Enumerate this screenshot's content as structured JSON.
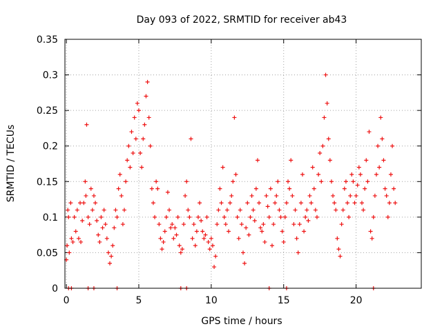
{
  "chart_data": {
    "type": "scatter",
    "title": "Day 093 of 2022, SRMTID for receiver ab43",
    "xlabel": "GPS time / hours",
    "ylabel": "SRMTID / TECUs",
    "xlim": [
      -0.1,
      24.5
    ],
    "ylim": [
      0,
      0.35
    ],
    "xticks": [
      0,
      5,
      10,
      15,
      20
    ],
    "xtick_labels": [
      "0",
      "5",
      "10",
      "15",
      "20"
    ],
    "yticks": [
      0,
      0.05,
      0.1,
      0.15,
      0.2,
      0.25,
      0.3,
      0.35
    ],
    "ytick_labels": [
      "0",
      "0.05",
      "0.1",
      "0.15",
      "0.2",
      "0.25",
      "0.3",
      "0.35"
    ],
    "grid": true,
    "marker": "+",
    "color": "#ee1111",
    "series": [
      {
        "name": "SRMTID",
        "points": [
          [
            0.0,
            0.04
          ],
          [
            0.05,
            0.06
          ],
          [
            0.1,
            0.11
          ],
          [
            0.15,
            0.1
          ],
          [
            0.2,
            0.05
          ],
          [
            0.3,
            0.12
          ],
          [
            0.35,
            0.07
          ],
          [
            0.45,
            0.065
          ],
          [
            0.55,
            0.1
          ],
          [
            0.65,
            0.08
          ],
          [
            0.75,
            0.11
          ],
          [
            0.85,
            0.07
          ],
          [
            0.95,
            0.12
          ],
          [
            1.0,
            0.065
          ],
          [
            1.1,
            0.095
          ],
          [
            1.2,
            0.12
          ],
          [
            1.3,
            0.15
          ],
          [
            1.35,
            0.13
          ],
          [
            1.4,
            0.23
          ],
          [
            1.5,
            0.1
          ],
          [
            1.6,
            0.09
          ],
          [
            1.7,
            0.14
          ],
          [
            1.8,
            0.11
          ],
          [
            1.9,
            0.13
          ],
          [
            2.0,
            0.12
          ],
          [
            2.1,
            0.095
          ],
          [
            2.2,
            0.075
          ],
          [
            2.3,
            0.065
          ],
          [
            2.4,
            0.1
          ],
          [
            2.5,
            0.085
          ],
          [
            2.6,
            0.11
          ],
          [
            2.7,
            0.09
          ],
          [
            2.8,
            0.07
          ],
          [
            2.9,
            0.05
          ],
          [
            3.0,
            0.035
          ],
          [
            3.1,
            0.045
          ],
          [
            3.2,
            0.06
          ],
          [
            3.3,
            0.085
          ],
          [
            3.4,
            0.11
          ],
          [
            3.5,
            0.1
          ],
          [
            3.6,
            0.14
          ],
          [
            3.7,
            0.16
          ],
          [
            3.8,
            0.13
          ],
          [
            3.9,
            0.09
          ],
          [
            4.0,
            0.11
          ],
          [
            4.1,
            0.15
          ],
          [
            4.2,
            0.18
          ],
          [
            4.3,
            0.2
          ],
          [
            4.4,
            0.17
          ],
          [
            4.5,
            0.22
          ],
          [
            4.6,
            0.19
          ],
          [
            4.7,
            0.24
          ],
          [
            4.8,
            0.21
          ],
          [
            4.9,
            0.26
          ],
          [
            5.0,
            0.25
          ],
          [
            5.1,
            0.19
          ],
          [
            5.2,
            0.17
          ],
          [
            5.3,
            0.21
          ],
          [
            5.4,
            0.23
          ],
          [
            5.5,
            0.27
          ],
          [
            5.6,
            0.29
          ],
          [
            5.7,
            0.24
          ],
          [
            5.8,
            0.2
          ],
          [
            5.9,
            0.14
          ],
          [
            6.0,
            0.12
          ],
          [
            6.1,
            0.1
          ],
          [
            6.2,
            0.15
          ],
          [
            6.3,
            0.14
          ],
          [
            6.4,
            0.09
          ],
          [
            6.5,
            0.07
          ],
          [
            6.6,
            0.055
          ],
          [
            6.7,
            0.065
          ],
          [
            6.8,
            0.08
          ],
          [
            6.9,
            0.1
          ],
          [
            7.0,
            0.135
          ],
          [
            7.1,
            0.11
          ],
          [
            7.2,
            0.085
          ],
          [
            7.3,
            0.09
          ],
          [
            7.4,
            0.07
          ],
          [
            7.5,
            0.085
          ],
          [
            7.6,
            0.075
          ],
          [
            7.7,
            0.1
          ],
          [
            7.8,
            0.06
          ],
          [
            7.9,
            0.05
          ],
          [
            8.0,
            0.055
          ],
          [
            8.1,
            0.09
          ],
          [
            8.2,
            0.13
          ],
          [
            8.3,
            0.15
          ],
          [
            8.4,
            0.11
          ],
          [
            8.5,
            0.1
          ],
          [
            8.6,
            0.21
          ],
          [
            8.7,
            0.07
          ],
          [
            8.8,
            0.09
          ],
          [
            8.9,
            0.06
          ],
          [
            9.0,
            0.08
          ],
          [
            9.1,
            0.1
          ],
          [
            9.2,
            0.12
          ],
          [
            9.3,
            0.095
          ],
          [
            9.4,
            0.08
          ],
          [
            9.5,
            0.07
          ],
          [
            9.6,
            0.075
          ],
          [
            9.7,
            0.1
          ],
          [
            9.8,
            0.065
          ],
          [
            9.9,
            0.055
          ],
          [
            10.0,
            0.07
          ],
          [
            10.1,
            0.06
          ],
          [
            10.2,
            0.03
          ],
          [
            10.3,
            0.045
          ],
          [
            10.4,
            0.09
          ],
          [
            10.5,
            0.11
          ],
          [
            10.6,
            0.14
          ],
          [
            10.7,
            0.12
          ],
          [
            10.8,
            0.17
          ],
          [
            10.9,
            0.1
          ],
          [
            11.0,
            0.09
          ],
          [
            11.1,
            0.11
          ],
          [
            11.2,
            0.08
          ],
          [
            11.3,
            0.12
          ],
          [
            11.4,
            0.13
          ],
          [
            11.5,
            0.15
          ],
          [
            11.6,
            0.24
          ],
          [
            11.7,
            0.16
          ],
          [
            11.8,
            0.1
          ],
          [
            11.9,
            0.07
          ],
          [
            12.0,
            0.11
          ],
          [
            12.1,
            0.09
          ],
          [
            12.2,
            0.05
          ],
          [
            12.3,
            0.035
          ],
          [
            12.4,
            0.085
          ],
          [
            12.5,
            0.12
          ],
          [
            12.6,
            0.075
          ],
          [
            12.7,
            0.1
          ],
          [
            12.8,
            0.13
          ],
          [
            12.9,
            0.11
          ],
          [
            13.0,
            0.095
          ],
          [
            13.1,
            0.14
          ],
          [
            13.2,
            0.18
          ],
          [
            13.3,
            0.12
          ],
          [
            13.4,
            0.085
          ],
          [
            13.5,
            0.08
          ],
          [
            13.6,
            0.09
          ],
          [
            13.7,
            0.065
          ],
          [
            13.8,
            0.13
          ],
          [
            13.9,
            0.115
          ],
          [
            14.0,
            0.1
          ],
          [
            14.1,
            0.14
          ],
          [
            14.2,
            0.06
          ],
          [
            14.3,
            0.09
          ],
          [
            14.4,
            0.12
          ],
          [
            14.5,
            0.13
          ],
          [
            14.6,
            0.15
          ],
          [
            14.7,
            0.11
          ],
          [
            14.8,
            0.1
          ],
          [
            14.9,
            0.08
          ],
          [
            15.0,
            0.065
          ],
          [
            15.1,
            0.1
          ],
          [
            15.2,
            0.12
          ],
          [
            15.3,
            0.15
          ],
          [
            15.4,
            0.14
          ],
          [
            15.5,
            0.18
          ],
          [
            15.6,
            0.13
          ],
          [
            15.7,
            0.09
          ],
          [
            15.8,
            0.11
          ],
          [
            15.9,
            0.07
          ],
          [
            16.0,
            0.05
          ],
          [
            16.1,
            0.09
          ],
          [
            16.2,
            0.12
          ],
          [
            16.3,
            0.16
          ],
          [
            16.4,
            0.08
          ],
          [
            16.5,
            0.1
          ],
          [
            16.6,
            0.11
          ],
          [
            16.7,
            0.095
          ],
          [
            16.8,
            0.13
          ],
          [
            16.9,
            0.12
          ],
          [
            17.0,
            0.17
          ],
          [
            17.1,
            0.14
          ],
          [
            17.2,
            0.11
          ],
          [
            17.3,
            0.1
          ],
          [
            17.4,
            0.16
          ],
          [
            17.5,
            0.19
          ],
          [
            17.6,
            0.15
          ],
          [
            17.7,
            0.2
          ],
          [
            17.8,
            0.24
          ],
          [
            17.9,
            0.3
          ],
          [
            18.0,
            0.26
          ],
          [
            18.1,
            0.21
          ],
          [
            18.2,
            0.18
          ],
          [
            18.3,
            0.15
          ],
          [
            18.4,
            0.13
          ],
          [
            18.5,
            0.12
          ],
          [
            18.6,
            0.11
          ],
          [
            18.7,
            0.07
          ],
          [
            18.8,
            0.055
          ],
          [
            18.9,
            0.045
          ],
          [
            19.0,
            0.09
          ],
          [
            19.1,
            0.11
          ],
          [
            19.2,
            0.14
          ],
          [
            19.3,
            0.15
          ],
          [
            19.4,
            0.12
          ],
          [
            19.5,
            0.1
          ],
          [
            19.6,
            0.13
          ],
          [
            19.7,
            0.16
          ],
          [
            19.8,
            0.15
          ],
          [
            19.9,
            0.12
          ],
          [
            20.0,
            0.13
          ],
          [
            20.1,
            0.145
          ],
          [
            20.2,
            0.17
          ],
          [
            20.3,
            0.16
          ],
          [
            20.4,
            0.12
          ],
          [
            20.5,
            0.11
          ],
          [
            20.6,
            0.14
          ],
          [
            20.7,
            0.18
          ],
          [
            20.8,
            0.15
          ],
          [
            20.9,
            0.22
          ],
          [
            21.0,
            0.08
          ],
          [
            21.1,
            0.07
          ],
          [
            21.2,
            0.1
          ],
          [
            21.3,
            0.13
          ],
          [
            21.4,
            0.16
          ],
          [
            21.5,
            0.2
          ],
          [
            21.6,
            0.17
          ],
          [
            21.7,
            0.24
          ],
          [
            21.8,
            0.21
          ],
          [
            21.9,
            0.18
          ],
          [
            22.0,
            0.14
          ],
          [
            22.1,
            0.13
          ],
          [
            22.2,
            0.1
          ],
          [
            22.3,
            0.12
          ],
          [
            22.4,
            0.16
          ],
          [
            22.5,
            0.2
          ],
          [
            22.6,
            0.14
          ],
          [
            22.7,
            0.12
          ]
        ]
      }
    ],
    "zero_points_x": [
      0.15,
      0.35,
      1.5,
      1.9,
      3.5,
      7.9,
      8.3,
      14.0,
      15.2,
      21.2
    ]
  }
}
